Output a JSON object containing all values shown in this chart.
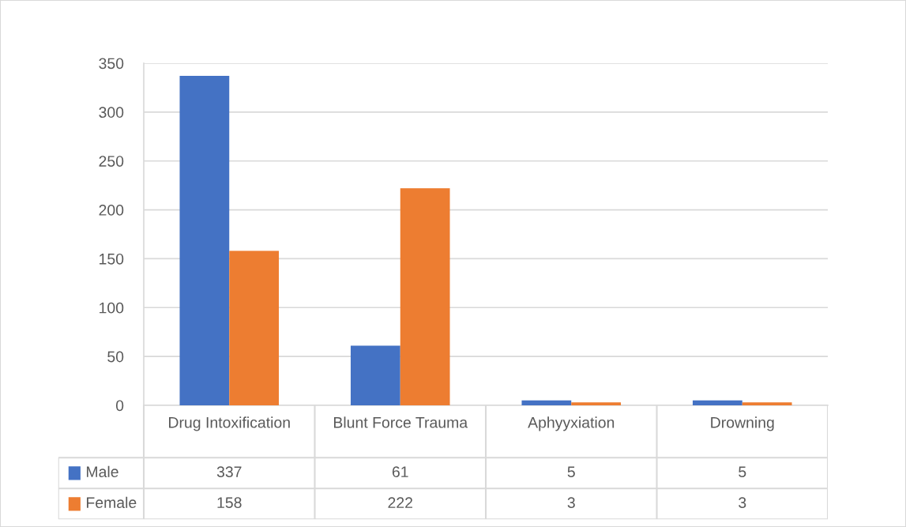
{
  "chart_data": {
    "type": "bar",
    "categories": [
      "Drug Intoxification",
      "Blunt Force Trauma",
      "Aphyyxiation",
      "Drowning"
    ],
    "series": [
      {
        "name": "Male",
        "color": "#4472c4",
        "values": [
          337,
          61,
          5,
          5
        ]
      },
      {
        "name": "Female",
        "color": "#ed7d31",
        "values": [
          158,
          222,
          3,
          3
        ]
      }
    ],
    "ylim": [
      0,
      350
    ],
    "yticks": [
      0,
      50,
      100,
      150,
      200,
      250,
      300,
      350
    ],
    "grid": "y",
    "legend": "bottom",
    "data_labels": true
  }
}
